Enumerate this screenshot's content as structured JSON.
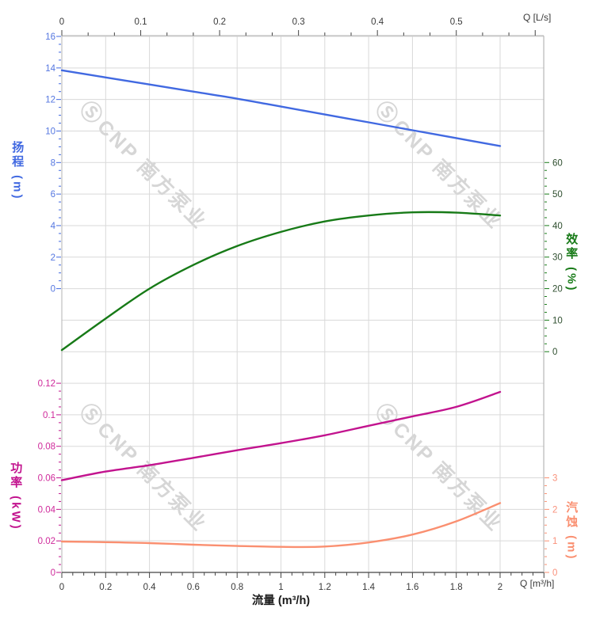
{
  "watermark": {
    "logo_glyph": "Ⓢ",
    "text": "CNP 南方泵业"
  },
  "colors": {
    "head": "#4169e1",
    "efficiency": "#177a17",
    "power": "#c2138e",
    "npsh": "#fa8f70",
    "head_text": "#5577e0",
    "efficiency_text": "#2f4f2f",
    "power_text": "#cf2a9b",
    "npsh_text": "#f9917b",
    "axis_text": "#3a3a3a",
    "flow_title_text": "#1a1a1a",
    "grid": "#d9d9d9",
    "border": "#b3b3b3",
    "bottom_axis": "#444444",
    "watermark": "#cccccc"
  },
  "chart_data": {
    "type": "line",
    "grid": true,
    "x_unit": "m³/h",
    "x": [
      0,
      0.2,
      0.4,
      0.6,
      0.8,
      1.0,
      1.2,
      1.4,
      1.6,
      1.8,
      2.0
    ],
    "series": [
      {
        "name": "扬程",
        "unit": "m",
        "axis": "head",
        "values": [
          13.85,
          13.4,
          12.95,
          12.5,
          12.05,
          11.55,
          11.05,
          10.55,
          10.05,
          9.55,
          9.05
        ]
      },
      {
        "name": "效率",
        "unit": "%",
        "axis": "efficiency",
        "values": [
          0.5,
          10.5,
          20.0,
          27.5,
          33.5,
          38.0,
          41.3,
          43.2,
          44.2,
          44.1,
          43.2
        ]
      },
      {
        "name": "功率",
        "unit": "kW",
        "axis": "power",
        "values": [
          0.0585,
          0.064,
          0.068,
          0.0727,
          0.0775,
          0.082,
          0.087,
          0.093,
          0.099,
          0.105,
          0.1145
        ]
      },
      {
        "name": "汽蚀",
        "unit": "m",
        "axis": "npsh",
        "values": [
          0.98,
          0.96,
          0.93,
          0.88,
          0.84,
          0.81,
          0.82,
          0.95,
          1.2,
          1.62,
          2.2
        ]
      }
    ],
    "axes": {
      "top": {
        "unit_label": "Q [L/s]",
        "ticks": [
          "0",
          "0.1",
          "0.2",
          "0.3",
          "0.4",
          "0.5"
        ],
        "range": [
          0,
          0.611
        ]
      },
      "bottom": {
        "title": "流量 (m³/h)",
        "unit_label": "Q [m³/h]",
        "ticks": [
          "0",
          "0.2",
          "0.4",
          "0.6",
          "0.8",
          "1",
          "1.2",
          "1.4",
          "1.6",
          "1.8",
          "2"
        ],
        "range": [
          0,
          2.2
        ]
      },
      "head": {
        "title": "扬程 (m)",
        "ticks": [
          "0",
          "2",
          "4",
          "6",
          "8",
          "10",
          "12",
          "14",
          "16"
        ],
        "range": [
          0,
          16
        ]
      },
      "efficiency": {
        "title": "效率 (%)",
        "ticks": [
          "0",
          "10",
          "20",
          "30",
          "40",
          "50",
          "60"
        ],
        "range": [
          0,
          60
        ]
      },
      "power": {
        "title": "功率 (kW)",
        "ticks": [
          "0",
          "0.02",
          "0.04",
          "0.06",
          "0.08",
          "0.1",
          "0.12"
        ],
        "range": [
          0,
          0.12
        ]
      },
      "npsh": {
        "title": "汽蚀 (m)",
        "ticks": [
          "0",
          "1",
          "2",
          "3"
        ],
        "range": [
          0,
          3
        ]
      }
    }
  }
}
